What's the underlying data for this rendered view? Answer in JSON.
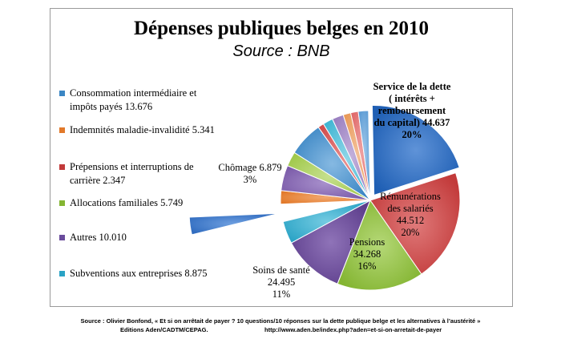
{
  "chart_data": {
    "type": "pie",
    "title": "Dépenses publiques belges en 2010",
    "subtitle": "Source : BNB",
    "slices": [
      {
        "label": "Service de la dette ( intérêts + remboursement du capital)",
        "value": 44.637,
        "percent": "20%",
        "color": "#1f5fb4",
        "light": "#5f93d8"
      },
      {
        "label": "Rémunérations des salariés",
        "value": 44.512,
        "percent": "20%",
        "color": "#c23a3a",
        "light": "#e07a7a"
      },
      {
        "label": "Pensions",
        "value": 34.268,
        "percent": "16%",
        "color": "#84b532",
        "light": "#b5d877"
      },
      {
        "label": "Soins de santé",
        "value": 24.495,
        "percent": "11%",
        "color": "#5d3e8c",
        "light": "#8f73b8"
      },
      {
        "label": "Subventions aux entreprises",
        "value": 8.875,
        "percent": "",
        "color": "#2aa3c5",
        "light": "#74cbe2"
      },
      {
        "label": "Chômage",
        "value": 6.879,
        "percent": "3%",
        "color": "#2f6bbf",
        "light": "#6fa0e0"
      },
      {
        "label": "Indemnités maladie-invalidité",
        "value": 5.341,
        "percent": "",
        "color": "#e2792a",
        "light": "#f2a86f"
      },
      {
        "label": "Autres",
        "value": 10.01,
        "percent": "",
        "color": "#7a5aa8",
        "light": "#a890cc"
      },
      {
        "label": "Allocations familiales",
        "value": 5.749,
        "percent": "",
        "color": "#a0c84a",
        "light": "#c6e08e"
      },
      {
        "label": "Consommation intermédiaire et impôts payés",
        "value": 13.676,
        "percent": "",
        "color": "#3b86c4",
        "light": "#86b9e2"
      },
      {
        "label": "Prépensions et interruptions de carrière",
        "value": 2.347,
        "percent": "",
        "color": "#d24e4e",
        "light": "#e99090"
      },
      {
        "label": "Subventions aux entreprises",
        "value": 4.0,
        "percent": "",
        "color": "#42b6d3",
        "light": "#8fd6e8"
      },
      {
        "label": "Autres",
        "value": 4.5,
        "percent": "",
        "color": "#9a80c0",
        "light": "#c3b1dc"
      },
      {
        "label": "Indemnités maladie-invalidité",
        "value": 3.0,
        "percent": "",
        "color": "#e89a5a",
        "light": "#f4c19a"
      },
      {
        "label": "Prépensions et interruptions de carrière",
        "value": 3.0,
        "percent": "",
        "color": "#e06a6a",
        "light": "#f0a5a5"
      },
      {
        "label": "Consommation intermédiaire et impôts payés",
        "value": 4.0,
        "percent": "",
        "color": "#5a9bd4",
        "light": "#a2c8ea"
      }
    ],
    "legend": [
      {
        "text": "Consommation intermédiaire et impôts payés 13.676",
        "color": "#3b86c4"
      },
      {
        "text": "Indemnités maladie-invalidité 5.341",
        "color": "#e2792a"
      },
      {
        "text": "Prépensions et interruptions de carrière 2.347",
        "color": "#c23a3a"
      },
      {
        "text": "Allocations familiales 5.749",
        "color": "#84b532"
      },
      {
        "text": "Autres 10.010",
        "color": "#6a4c9c"
      },
      {
        "text": "Subventions aux entreprises 8.875",
        "color": "#2aa3c5"
      }
    ],
    "labels": {
      "dette_l1": "Service de la dette",
      "dette_l2": "( intérêts +",
      "dette_l3": "remboursement",
      "dette_l4": "du capital)  44.637",
      "dette_l5": "20%",
      "remu_l1": "Rémunérations",
      "remu_l2": "des salariés",
      "remu_l3": "44.512",
      "remu_l4": "20%",
      "pens_l1": "Pensions",
      "pens_l2": "34.268",
      "pens_l3": "16%",
      "sante_l1": "Soins de santé",
      "sante_l2": "24.495",
      "sante_l3": "11%",
      "chom_l1": "Chômage 6.879",
      "chom_l2": "3%"
    }
  },
  "footer": {
    "line1": "Source : Olivier Bonfond, « Et si on arrêtait de payer ? 10 questions/10 réponses sur la dette publique belge et les alternatives à l’austérité »",
    "line2": "Editions Aden/CADTM/CEPAG.",
    "line3": "http://www.aden.be/index.php?aden=et-si-on-arretait-de-payer"
  }
}
